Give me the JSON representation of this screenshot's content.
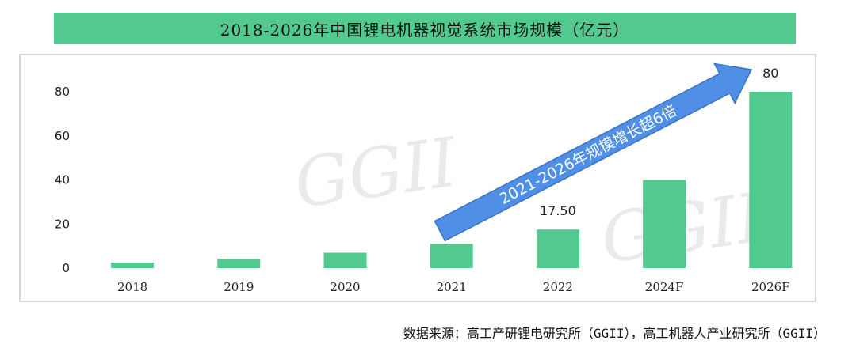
{
  "title": "2018-2026年中国锂电机器视觉系统市场规模（亿元）",
  "source": "数据来源：高工产研锂电研究所（GGII），高工机器人产业研究所（GGII）",
  "watermark": "GGII",
  "annotation": "2021-2026年规模增长超6倍",
  "colors": {
    "bar": "#52c98e",
    "title_bg": "#52c98e",
    "arrow": "#4f8fe6",
    "arrow_edge": "#3a74c9"
  },
  "chart_data": {
    "type": "bar",
    "categories": [
      "2018",
      "2019",
      "2020",
      "2021",
      "2022",
      "2024F",
      "2026F"
    ],
    "values": [
      2.5,
      4.2,
      7.0,
      11.0,
      17.5,
      40.0,
      80.0
    ],
    "data_labels": {
      "4": "17.50",
      "6": "80"
    },
    "yticks": [
      0,
      20,
      40,
      60,
      80
    ],
    "ylim": [
      0,
      80
    ],
    "xlabel": "",
    "ylabel": "",
    "grid": false,
    "legend": "none"
  }
}
